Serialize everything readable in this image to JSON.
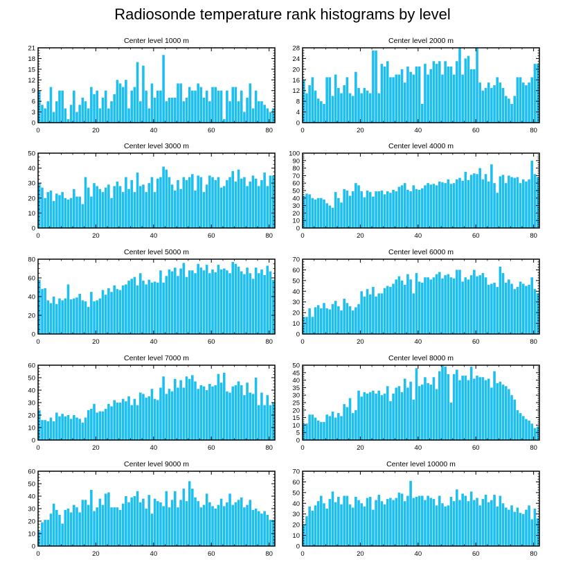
{
  "title": "Radiosonde temperature rank histograms by level",
  "bar_color": "#1ebfef",
  "chart_data": [
    {
      "type": "bar",
      "title": "Center level 1000 m",
      "xlim": [
        0,
        82
      ],
      "ylim": [
        0,
        21
      ],
      "yticks": [
        0,
        3,
        6,
        9,
        12,
        15,
        18,
        21
      ],
      "xticks": [
        0,
        20,
        40,
        60,
        80
      ],
      "values": [
        9,
        5,
        4,
        6,
        10,
        3,
        6,
        9,
        9,
        4,
        1,
        5,
        9,
        3,
        5,
        7,
        6,
        4,
        10,
        8,
        9,
        4,
        7,
        9,
        4,
        6,
        8,
        12,
        11,
        10,
        12,
        4,
        9,
        10,
        17,
        6,
        16,
        9,
        4,
        11,
        7,
        9,
        9,
        19,
        6,
        7,
        7,
        7,
        11,
        11,
        6,
        7,
        10,
        9,
        9,
        11,
        10,
        7,
        9,
        6,
        10,
        10,
        9,
        9,
        1,
        9,
        6,
        10,
        10,
        6,
        9,
        3,
        7,
        11,
        4,
        9,
        6,
        6,
        5,
        4,
        3,
        4
      ]
    },
    {
      "type": "bar",
      "title": "Center level 2000 m",
      "xlim": [
        0,
        82
      ],
      "ylim": [
        0,
        28
      ],
      "yticks": [
        0,
        4,
        8,
        12,
        16,
        20,
        24,
        28
      ],
      "xticks": [
        0,
        20,
        40,
        60,
        80
      ],
      "values": [
        16,
        11,
        14,
        17,
        12,
        9,
        8,
        7,
        17,
        17,
        10,
        18,
        13,
        11,
        14,
        17,
        11,
        10,
        19,
        13,
        11,
        13,
        12,
        11,
        27,
        27,
        11,
        22,
        21,
        23,
        17,
        17,
        18,
        18,
        20,
        15,
        21,
        19,
        18,
        21,
        21,
        7,
        22,
        18,
        20,
        23,
        22,
        23,
        18,
        23,
        21,
        21,
        18,
        23,
        28,
        18,
        24,
        25,
        20,
        20,
        28,
        15,
        12,
        13,
        15,
        13,
        14,
        17,
        15,
        13,
        10,
        9,
        7,
        10,
        17,
        17,
        15,
        14,
        15,
        17,
        22,
        22
      ]
    },
    {
      "type": "bar",
      "title": "Center level 3000 m",
      "xlim": [
        0,
        82
      ],
      "ylim": [
        0,
        50
      ],
      "yticks": [
        0,
        10,
        20,
        30,
        40,
        50
      ],
      "xticks": [
        0,
        20,
        40,
        60,
        80
      ],
      "values": [
        30,
        27,
        20,
        24,
        25,
        18,
        23,
        22,
        24,
        20,
        19,
        20,
        26,
        21,
        21,
        16,
        34,
        27,
        21,
        30,
        28,
        26,
        24,
        27,
        29,
        20,
        28,
        31,
        28,
        24,
        34,
        26,
        32,
        24,
        37,
        28,
        29,
        24,
        30,
        34,
        24,
        33,
        34,
        41,
        39,
        34,
        29,
        25,
        32,
        26,
        34,
        32,
        34,
        36,
        25,
        35,
        34,
        24,
        29,
        35,
        34,
        32,
        34,
        27,
        28,
        32,
        34,
        38,
        31,
        39,
        33,
        34,
        28,
        31,
        35,
        33,
        28,
        32,
        37,
        28,
        35,
        35
      ]
    },
    {
      "type": "bar",
      "title": "Center level 4000 m",
      "xlim": [
        0,
        82
      ],
      "ylim": [
        0,
        100
      ],
      "yticks": [
        0,
        10,
        20,
        30,
        40,
        50,
        60,
        70,
        80,
        90,
        100
      ],
      "xticks": [
        0,
        20,
        40,
        60,
        80
      ],
      "values": [
        43,
        46,
        45,
        40,
        38,
        40,
        40,
        38,
        33,
        30,
        27,
        48,
        40,
        34,
        52,
        50,
        43,
        49,
        60,
        57,
        49,
        41,
        50,
        48,
        42,
        49,
        49,
        50,
        45,
        49,
        47,
        51,
        49,
        55,
        57,
        60,
        51,
        49,
        57,
        52,
        51,
        53,
        57,
        60,
        58,
        59,
        57,
        62,
        61,
        60,
        65,
        59,
        60,
        65,
        67,
        63,
        75,
        64,
        71,
        73,
        72,
        80,
        65,
        72,
        62,
        85,
        60,
        47,
        69,
        71,
        60,
        70,
        68,
        67,
        68,
        60,
        65,
        62,
        65,
        90,
        72,
        68
      ]
    },
    {
      "type": "bar",
      "title": "Center level 5000 m",
      "xlim": [
        0,
        82
      ],
      "ylim": [
        0,
        80
      ],
      "yticks": [
        0,
        20,
        40,
        60,
        80
      ],
      "xticks": [
        0,
        20,
        40,
        60,
        80
      ],
      "values": [
        58,
        48,
        49,
        36,
        33,
        40,
        32,
        38,
        36,
        38,
        53,
        37,
        38,
        39,
        43,
        36,
        35,
        29,
        45,
        35,
        36,
        38,
        47,
        42,
        49,
        45,
        52,
        48,
        47,
        52,
        53,
        57,
        59,
        61,
        52,
        65,
        57,
        53,
        58,
        55,
        56,
        55,
        68,
        55,
        62,
        69,
        67,
        71,
        62,
        70,
        76,
        61,
        68,
        68,
        65,
        75,
        71,
        68,
        74,
        65,
        69,
        66,
        74,
        69,
        70,
        68,
        65,
        77,
        75,
        72,
        67,
        64,
        71,
        65,
        59,
        71,
        65,
        69,
        63,
        73,
        67,
        58
      ]
    },
    {
      "type": "bar",
      "title": "Center level 6000 m",
      "xlim": [
        0,
        82
      ],
      "ylim": [
        0,
        70
      ],
      "yticks": [
        0,
        10,
        20,
        30,
        40,
        50,
        60,
        70
      ],
      "xticks": [
        0,
        20,
        40,
        60,
        80
      ],
      "values": [
        16,
        16,
        24,
        16,
        25,
        27,
        24,
        29,
        24,
        23,
        28,
        31,
        26,
        22,
        33,
        29,
        26,
        22,
        25,
        28,
        40,
        35,
        42,
        37,
        44,
        35,
        38,
        38,
        43,
        45,
        44,
        47,
        51,
        54,
        50,
        46,
        56,
        51,
        38,
        57,
        49,
        48,
        53,
        53,
        51,
        53,
        56,
        58,
        52,
        55,
        56,
        53,
        52,
        60,
        60,
        49,
        53,
        51,
        55,
        60,
        54,
        55,
        57,
        53,
        46,
        47,
        48,
        44,
        63,
        57,
        48,
        51,
        47,
        42,
        44,
        49,
        47,
        45,
        46,
        53,
        42,
        38
      ]
    },
    {
      "type": "bar",
      "title": "Center level 7000 m",
      "xlim": [
        0,
        82
      ],
      "ylim": [
        0,
        60
      ],
      "yticks": [
        0,
        10,
        20,
        30,
        40,
        50,
        60
      ],
      "xticks": [
        0,
        20,
        40,
        60,
        80
      ],
      "values": [
        24,
        16,
        16,
        15,
        18,
        15,
        22,
        19,
        21,
        19,
        20,
        17,
        20,
        18,
        17,
        14,
        18,
        24,
        25,
        29,
        22,
        23,
        23,
        25,
        29,
        27,
        32,
        30,
        30,
        33,
        31,
        35,
        28,
        33,
        28,
        38,
        37,
        34,
        35,
        41,
        33,
        32,
        42,
        51,
        37,
        41,
        39,
        49,
        42,
        48,
        42,
        51,
        49,
        52,
        47,
        41,
        44,
        43,
        40,
        45,
        43,
        44,
        53,
        46,
        54,
        39,
        38,
        43,
        44,
        47,
        44,
        36,
        46,
        38,
        37,
        50,
        28,
        38,
        28,
        36,
        28,
        30
      ]
    },
    {
      "type": "bar",
      "title": "Center level 8000 m",
      "xlim": [
        0,
        82
      ],
      "ylim": [
        0,
        50
      ],
      "yticks": [
        0,
        5,
        10,
        15,
        20,
        25,
        30,
        35,
        40,
        45,
        50
      ],
      "xticks": [
        0,
        20,
        40,
        60,
        80
      ],
      "values": [
        11,
        11,
        17,
        17,
        15,
        13,
        12,
        12,
        17,
        16,
        19,
        15,
        18,
        16,
        24,
        22,
        28,
        18,
        20,
        33,
        29,
        32,
        31,
        32,
        33,
        31,
        33,
        30,
        31,
        36,
        26,
        31,
        35,
        36,
        32,
        41,
        35,
        39,
        27,
        48,
        36,
        37,
        42,
        38,
        37,
        42,
        34,
        46,
        50,
        49,
        44,
        25,
        44,
        47,
        40,
        43,
        43,
        40,
        49,
        41,
        43,
        42,
        42,
        40,
        41,
        35,
        46,
        38,
        39,
        37,
        36,
        34,
        30,
        27,
        20,
        18,
        16,
        14,
        13,
        11,
        8,
        9
      ]
    },
    {
      "type": "bar",
      "title": "Center level 9000 m",
      "xlim": [
        0,
        82
      ],
      "ylim": [
        0,
        60
      ],
      "yticks": [
        0,
        10,
        20,
        30,
        40,
        50,
        60
      ],
      "xticks": [
        0,
        20,
        40,
        60,
        80
      ],
      "values": [
        12,
        19,
        21,
        21,
        26,
        34,
        29,
        25,
        18,
        29,
        30,
        27,
        33,
        31,
        27,
        37,
        37,
        33,
        45,
        28,
        31,
        38,
        33,
        42,
        43,
        31,
        31,
        31,
        29,
        34,
        40,
        35,
        39,
        40,
        44,
        35,
        38,
        30,
        41,
        26,
        38,
        36,
        35,
        32,
        44,
        31,
        37,
        44,
        31,
        37,
        46,
        36,
        52,
        46,
        39,
        36,
        31,
        33,
        42,
        35,
        32,
        30,
        33,
        38,
        32,
        35,
        42,
        33,
        35,
        37,
        39,
        31,
        33,
        37,
        29,
        30,
        28,
        26,
        28,
        25,
        21,
        21
      ]
    },
    {
      "type": "bar",
      "title": "Center level 10000 m",
      "xlim": [
        0,
        82
      ],
      "ylim": [
        0,
        70
      ],
      "yticks": [
        0,
        10,
        20,
        30,
        40,
        50,
        60,
        70
      ],
      "xticks": [
        0,
        20,
        40,
        60,
        80
      ],
      "values": [
        20,
        28,
        37,
        33,
        38,
        42,
        47,
        40,
        35,
        44,
        51,
        41,
        46,
        39,
        47,
        47,
        39,
        36,
        46,
        43,
        40,
        37,
        45,
        46,
        34,
        43,
        48,
        42,
        39,
        44,
        45,
        43,
        45,
        50,
        49,
        42,
        47,
        61,
        45,
        46,
        47,
        47,
        43,
        47,
        45,
        44,
        38,
        47,
        40,
        37,
        38,
        46,
        42,
        53,
        43,
        49,
        47,
        42,
        51,
        43,
        45,
        38,
        44,
        48,
        41,
        43,
        48,
        37,
        47,
        40,
        36,
        34,
        38,
        32,
        36,
        31,
        30,
        34,
        38,
        25,
        35,
        26
      ]
    }
  ]
}
